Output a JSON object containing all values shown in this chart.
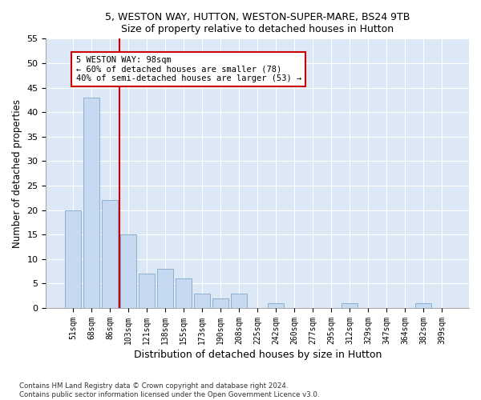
{
  "title1": "5, WESTON WAY, HUTTON, WESTON-SUPER-MARE, BS24 9TB",
  "title2": "Size of property relative to detached houses in Hutton",
  "xlabel": "Distribution of detached houses by size in Hutton",
  "ylabel": "Number of detached properties",
  "categories": [
    "51sqm",
    "68sqm",
    "86sqm",
    "103sqm",
    "121sqm",
    "138sqm",
    "155sqm",
    "173sqm",
    "190sqm",
    "208sqm",
    "225sqm",
    "242sqm",
    "260sqm",
    "277sqm",
    "295sqm",
    "312sqm",
    "329sqm",
    "347sqm",
    "364sqm",
    "382sqm",
    "399sqm"
  ],
  "values": [
    20,
    43,
    22,
    15,
    7,
    8,
    6,
    3,
    2,
    3,
    0,
    1,
    0,
    0,
    0,
    1,
    0,
    0,
    0,
    1,
    0
  ],
  "bar_color": "#c6d9f0",
  "bar_edge_color": "#8ab0d0",
  "vline_x": 2.5,
  "vline_color": "#cc0000",
  "annotation_line1": "5 WESTON WAY: 98sqm",
  "annotation_line2": "← 60% of detached houses are smaller (78)",
  "annotation_line3": "40% of semi-detached houses are larger (53) →",
  "annotation_box_color": "#ffffff",
  "annotation_box_edge": "#cc0000",
  "ylim": [
    0,
    55
  ],
  "yticks": [
    0,
    5,
    10,
    15,
    20,
    25,
    30,
    35,
    40,
    45,
    50,
    55
  ],
  "bg_color": "#dce8f5",
  "grid_color": "#ffffff",
  "footer1": "Contains HM Land Registry data © Crown copyright and database right 2024.",
  "footer2": "Contains public sector information licensed under the Open Government Licence v3.0."
}
